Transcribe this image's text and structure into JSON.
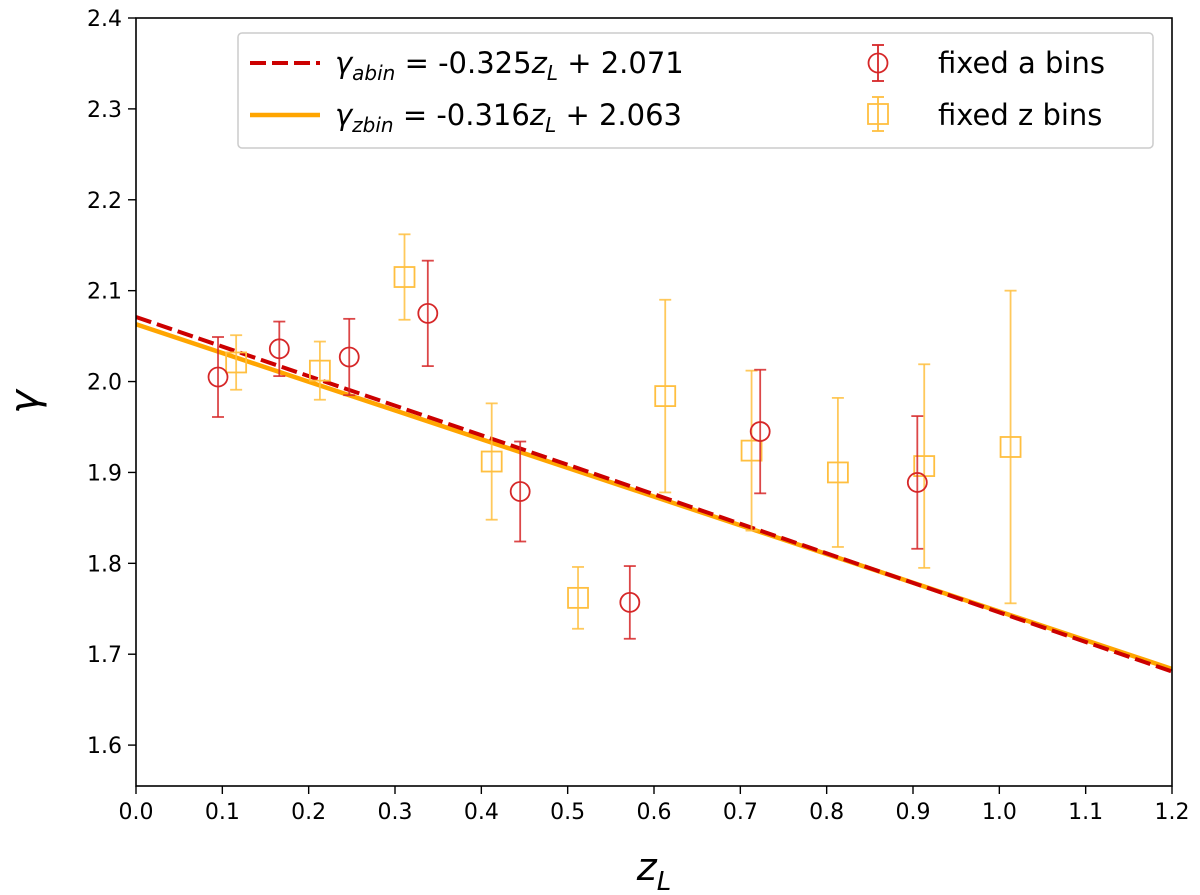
{
  "chart_data": {
    "type": "scatter",
    "title": "",
    "xlabel": {
      "base": "z",
      "sub": "L"
    },
    "ylabel": "γ",
    "xlim": [
      0.0,
      1.2
    ],
    "ylim": [
      1.555,
      2.4
    ],
    "xticks": [
      "0.0",
      "0.1",
      "0.2",
      "0.3",
      "0.4",
      "0.5",
      "0.6",
      "0.7",
      "0.8",
      "0.9",
      "1.0",
      "1.1",
      "1.2"
    ],
    "yticks": [
      "1.6",
      "1.7",
      "1.8",
      "1.9",
      "2.0",
      "2.1",
      "2.2",
      "2.3",
      "2.4"
    ],
    "grid": false,
    "legend_position": "top-right",
    "colors": {
      "abin": "#cc0000",
      "zbin": "#ffa500",
      "abin_points": "#d62728",
      "zbin_points": "#ffbf40"
    },
    "lines": [
      {
        "id": "abin",
        "slope": -0.325,
        "intercept": 2.071,
        "style": "dashed",
        "legend": {
          "gamma": "γ",
          "sub": "abin",
          "eq": " = -0.325",
          "var": "z",
          "varsub": "L",
          "rest": " + 2.071"
        }
      },
      {
        "id": "zbin",
        "slope": -0.316,
        "intercept": 2.063,
        "style": "solid",
        "legend": {
          "gamma": "γ",
          "sub": "zbin",
          "eq": " = -0.316",
          "var": "z",
          "varsub": "L",
          "rest": " + 2.063"
        }
      }
    ],
    "series": [
      {
        "name": "fixed a bins",
        "marker": "circle",
        "points": [
          {
            "x": 0.095,
            "y": 2.005,
            "err": 0.044
          },
          {
            "x": 0.166,
            "y": 2.036,
            "err": 0.03
          },
          {
            "x": 0.247,
            "y": 2.027,
            "err": 0.042
          },
          {
            "x": 0.338,
            "y": 2.075,
            "err": 0.058
          },
          {
            "x": 0.445,
            "y": 1.879,
            "err": 0.055
          },
          {
            "x": 0.572,
            "y": 1.757,
            "err": 0.04
          },
          {
            "x": 0.723,
            "y": 1.945,
            "err": 0.068
          },
          {
            "x": 0.905,
            "y": 1.889,
            "err": 0.073
          }
        ]
      },
      {
        "name": "fixed z bins",
        "marker": "square",
        "points": [
          {
            "x": 0.116,
            "y": 2.021,
            "err": 0.03
          },
          {
            "x": 0.213,
            "y": 2.012,
            "err": 0.032
          },
          {
            "x": 0.311,
            "y": 2.115,
            "err": 0.047
          },
          {
            "x": 0.412,
            "y": 1.912,
            "err": 0.064
          },
          {
            "x": 0.512,
            "y": 1.762,
            "err": 0.034
          },
          {
            "x": 0.613,
            "y": 1.984,
            "err": 0.106
          },
          {
            "x": 0.713,
            "y": 1.924,
            "err": 0.088
          },
          {
            "x": 0.813,
            "y": 1.9,
            "err": 0.082
          },
          {
            "x": 0.913,
            "y": 1.907,
            "err": 0.112
          },
          {
            "x": 1.013,
            "y": 1.928,
            "err": 0.172
          }
        ]
      }
    ]
  }
}
